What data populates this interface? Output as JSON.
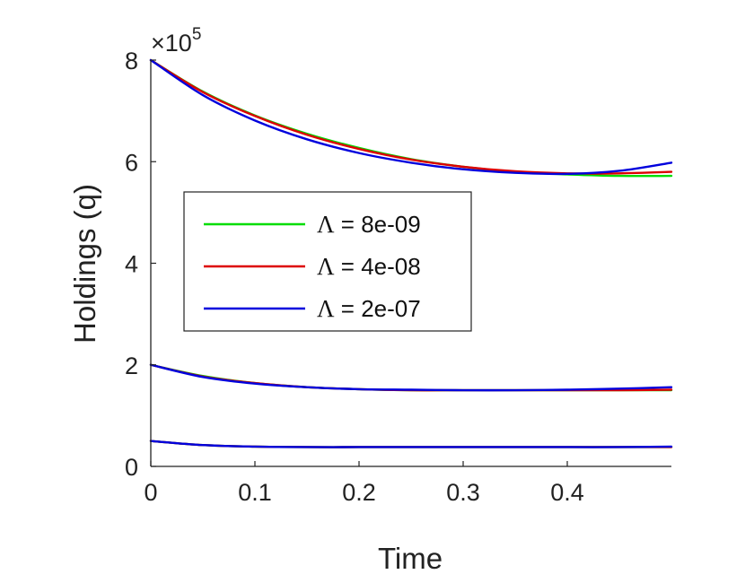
{
  "chart_data": {
    "type": "line",
    "title": "",
    "xlabel": "Time",
    "ylabel": "Holdings (q)",
    "xlim": [
      0,
      0.5
    ],
    "ylim": [
      0,
      8
    ],
    "y_exponent_label": "×10",
    "y_exponent_power": "5",
    "x_ticks": [
      0,
      0.1,
      0.2,
      0.3,
      0.4
    ],
    "x_tick_labels": [
      "0",
      "0.1",
      "0.2",
      "0.3",
      "0.4"
    ],
    "y_ticks": [
      0,
      2,
      4,
      6,
      8
    ],
    "y_tick_labels": [
      "0",
      "2",
      "4",
      "6",
      "8"
    ],
    "legend_position": "center-left",
    "series": [
      {
        "name": "Λ = 8e-09",
        "symbol": "Λ",
        "value_text": " = 8e-09",
        "color": "#00dd00",
        "groups": [
          {
            "x": [
              0,
              0.05,
              0.1,
              0.15,
              0.2,
              0.25,
              0.3,
              0.35,
              0.4,
              0.45,
              0.5
            ],
            "y": [
              8.0,
              7.38,
              6.91,
              6.55,
              6.27,
              6.05,
              5.9,
              5.8,
              5.75,
              5.72,
              5.72
            ]
          },
          {
            "x": [
              0,
              0.05,
              0.1,
              0.15,
              0.2,
              0.25,
              0.3,
              0.35,
              0.4,
              0.45,
              0.5
            ],
            "y": [
              2.0,
              1.78,
              1.64,
              1.56,
              1.52,
              1.5,
              1.5,
              1.5,
              1.5,
              1.5,
              1.5
            ]
          },
          {
            "x": [
              0,
              0.05,
              0.1,
              0.15,
              0.2,
              0.25,
              0.3,
              0.35,
              0.4,
              0.45,
              0.5
            ],
            "y": [
              0.5,
              0.42,
              0.39,
              0.38,
              0.38,
              0.38,
              0.38,
              0.38,
              0.38,
              0.38,
              0.38
            ]
          }
        ]
      },
      {
        "name": "Λ = 4e-08",
        "symbol": "Λ",
        "value_text": " = 4e-08",
        "color": "#dd0000",
        "groups": [
          {
            "x": [
              0,
              0.05,
              0.1,
              0.15,
              0.2,
              0.25,
              0.3,
              0.35,
              0.4,
              0.45,
              0.5
            ],
            "y": [
              8.0,
              7.37,
              6.9,
              6.53,
              6.25,
              6.04,
              5.9,
              5.81,
              5.77,
              5.77,
              5.8
            ]
          },
          {
            "x": [
              0,
              0.05,
              0.1,
              0.15,
              0.2,
              0.25,
              0.3,
              0.35,
              0.4,
              0.45,
              0.5
            ],
            "y": [
              2.0,
              1.77,
              1.64,
              1.56,
              1.52,
              1.5,
              1.5,
              1.5,
              1.5,
              1.5,
              1.51
            ]
          },
          {
            "x": [
              0,
              0.05,
              0.1,
              0.15,
              0.2,
              0.25,
              0.3,
              0.35,
              0.4,
              0.45,
              0.5
            ],
            "y": [
              0.5,
              0.42,
              0.39,
              0.38,
              0.38,
              0.38,
              0.38,
              0.38,
              0.38,
              0.38,
              0.38
            ]
          }
        ]
      },
      {
        "name": "Λ = 2e-07",
        "symbol": "Λ",
        "value_text": " = 2e-07",
        "color": "#0000dd",
        "groups": [
          {
            "x": [
              0,
              0.05,
              0.1,
              0.15,
              0.2,
              0.25,
              0.3,
              0.35,
              0.4,
              0.45,
              0.5
            ],
            "y": [
              8.0,
              7.31,
              6.81,
              6.44,
              6.17,
              5.98,
              5.85,
              5.78,
              5.76,
              5.82,
              5.98
            ]
          },
          {
            "x": [
              0,
              0.05,
              0.1,
              0.15,
              0.2,
              0.25,
              0.3,
              0.35,
              0.4,
              0.45,
              0.5
            ],
            "y": [
              2.0,
              1.76,
              1.63,
              1.56,
              1.52,
              1.51,
              1.5,
              1.5,
              1.51,
              1.53,
              1.56
            ]
          },
          {
            "x": [
              0,
              0.05,
              0.1,
              0.15,
              0.2,
              0.25,
              0.3,
              0.35,
              0.4,
              0.45,
              0.5
            ],
            "y": [
              0.5,
              0.42,
              0.39,
              0.38,
              0.38,
              0.38,
              0.38,
              0.38,
              0.38,
              0.38,
              0.39
            ]
          }
        ]
      }
    ]
  }
}
